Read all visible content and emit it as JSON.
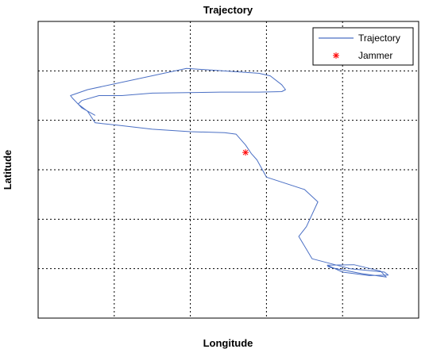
{
  "chart_data": {
    "type": "line",
    "title": "Trajectory",
    "xlabel": "Longitude",
    "ylabel": "Latitude",
    "xlim": [
      0,
      10
    ],
    "ylim": [
      0,
      6
    ],
    "grid": true,
    "tick_labels_shown": false,
    "legend_position": "top-right",
    "series": [
      {
        "name": "Trajectory",
        "kind": "line",
        "color": "#4a6fc4",
        "x": [
          1.5,
          1.15,
          0.9,
          0.85,
          1.3,
          3.9,
          5.8,
          6.1,
          6.4,
          6.5,
          6.4,
          5.8,
          4.8,
          3.0,
          2.2,
          1.6,
          1.15,
          1.05,
          1.3,
          1.5,
          2.1,
          3.0,
          4.0,
          4.9,
          5.2,
          5.45,
          5.6,
          5.75,
          6.0,
          7.0,
          7.35,
          7.05,
          6.85,
          7.2,
          7.6,
          8.2,
          9.1,
          9.2,
          8.7,
          8.0,
          7.6,
          8.3,
          9.0,
          9.15,
          8.5,
          7.7,
          7.6
        ],
        "y": [
          4.1,
          4.25,
          4.45,
          4.5,
          4.62,
          5.05,
          4.95,
          4.9,
          4.72,
          4.62,
          4.58,
          4.57,
          4.57,
          4.55,
          4.5,
          4.5,
          4.4,
          4.33,
          4.18,
          3.95,
          3.9,
          3.82,
          3.77,
          3.75,
          3.72,
          3.5,
          3.33,
          3.2,
          2.85,
          2.6,
          2.35,
          1.85,
          1.65,
          1.2,
          1.12,
          1.0,
          0.93,
          0.87,
          0.86,
          0.93,
          1.07,
          1.08,
          0.95,
          0.83,
          0.9,
          1.02,
          1.05
        ]
      },
      {
        "name": "Jammer",
        "kind": "marker",
        "marker": "*",
        "color": "#ff0000",
        "x": [
          5.45
        ],
        "y": [
          3.35
        ]
      }
    ]
  }
}
